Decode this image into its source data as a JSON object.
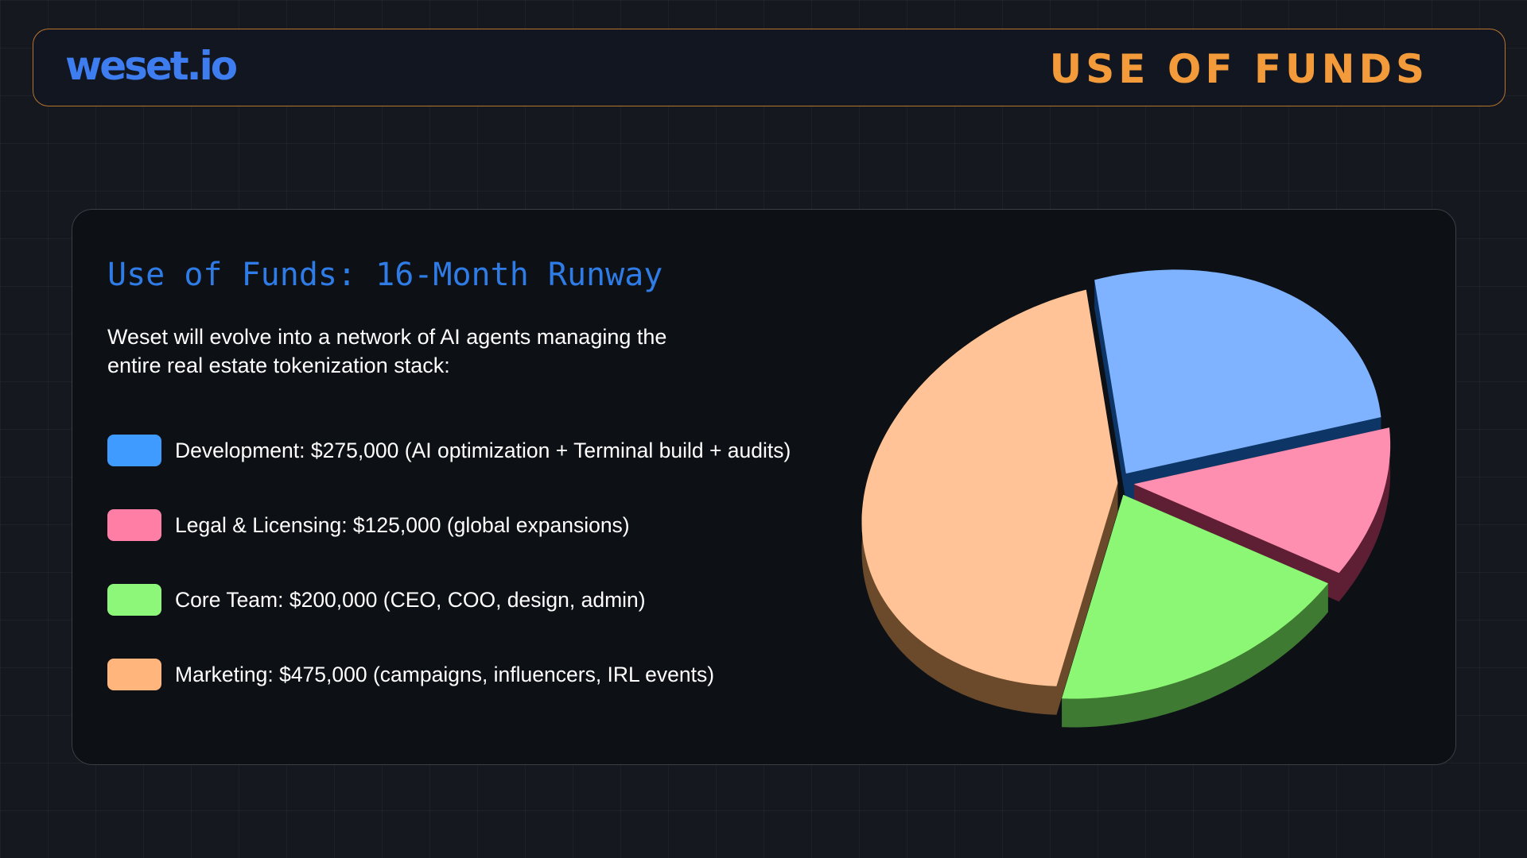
{
  "header": {
    "logo": "weset.io",
    "title": "USE OF FUNDS"
  },
  "card": {
    "title": "Use of Funds: 16-Month Runway",
    "description": "Weset will evolve into a network of AI agents managing the entire real estate tokenization stack:"
  },
  "legend": [
    {
      "label": "Development: $275,000 (AI optimization + Terminal build + audits)",
      "color": "#3f9bff"
    },
    {
      "label": "Legal & Licensing: $125,000 (global expansions)",
      "color": "#ff7ea6"
    },
    {
      "label": "Core Team: $200,000 (CEO, COO, design, admin)",
      "color": "#8df77a"
    },
    {
      "label": "Marketing: $475,000 (campaigns, influencers, IRL events)",
      "color": "#ffb57c"
    }
  ],
  "chart_data": {
    "type": "pie",
    "categories": [
      "Development",
      "Legal & Licensing",
      "Core Team",
      "Marketing"
    ],
    "values": [
      275000,
      125000,
      200000,
      475000
    ],
    "colors": {
      "top": [
        "#80b3ff",
        "#ff8fb0",
        "#8cf774",
        "#ffc397"
      ],
      "side": [
        "#0d3566",
        "#5e1f34",
        "#3f7a33",
        "#6b4a2c"
      ]
    }
  }
}
